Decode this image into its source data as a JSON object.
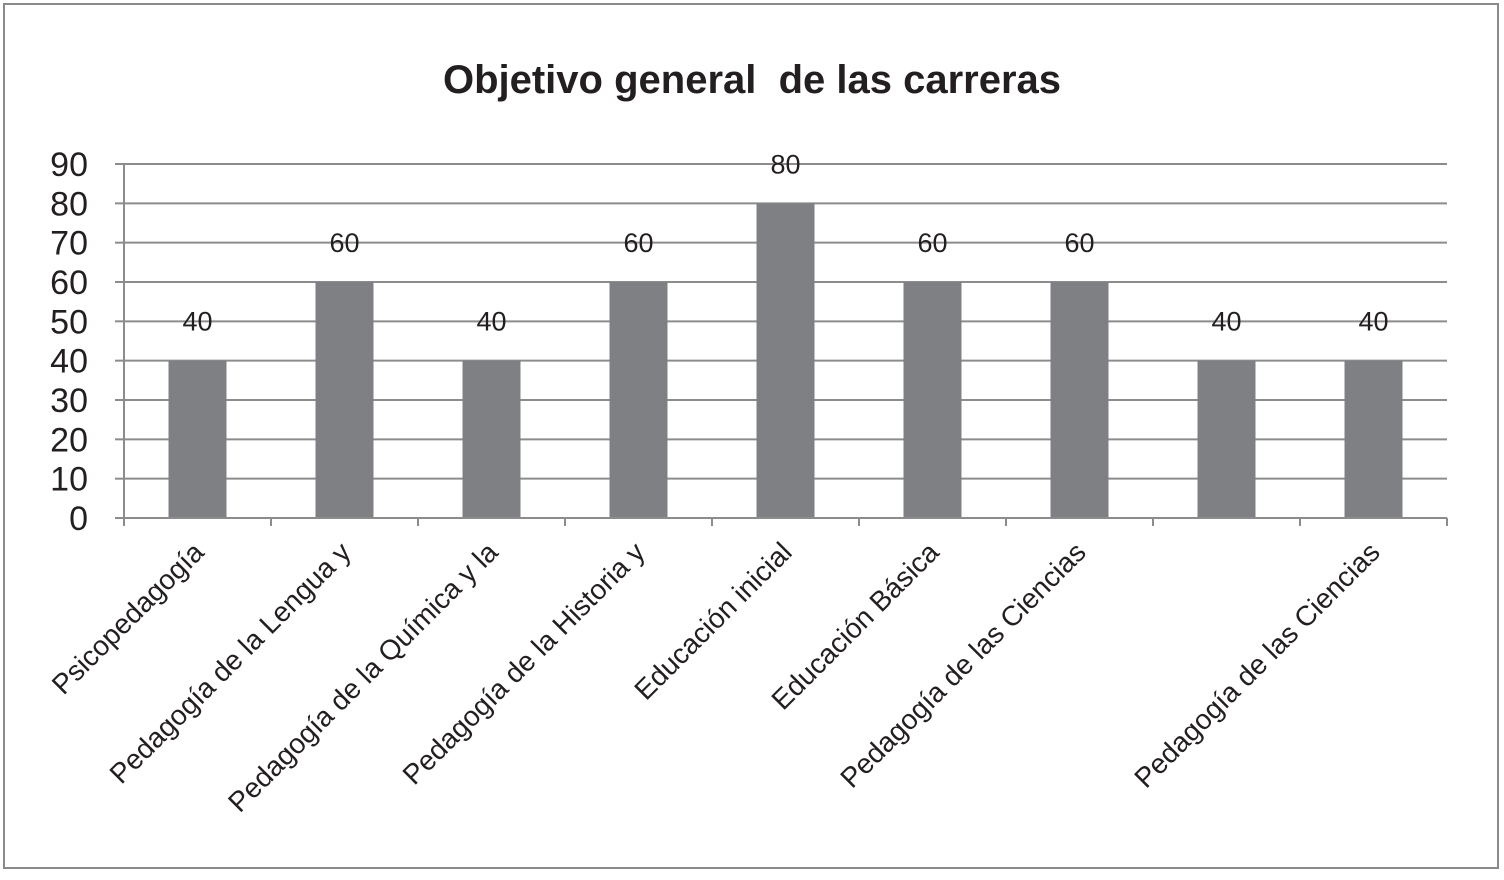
{
  "chart_data": {
    "type": "bar",
    "title": "Objetivo general  de las carreras",
    "xlabel": "",
    "ylabel": "",
    "ylim": [
      0,
      90
    ],
    "y_ticks": [
      0,
      10,
      20,
      30,
      40,
      50,
      60,
      70,
      80,
      90
    ],
    "grid": true,
    "legend": "none",
    "bar_color": "#7f8084",
    "grid_color": "#8c8c8c",
    "text_color": "#231f20",
    "categories": [
      "Psicopedagogía",
      "Pedagogía de la Lengua y",
      "Pedagogía de la Química y la",
      "Pedagogía de la Historia y",
      "Educación inicial",
      "Educación Básica",
      "Pedagogía de las Ciencias",
      "",
      "Pedagogía de las Ciencias"
    ],
    "values": [
      40,
      60,
      40,
      60,
      80,
      60,
      60,
      40,
      40
    ],
    "data_labels": [
      "40",
      "60",
      "40",
      "60",
      "80",
      "60",
      "60",
      "40",
      "40"
    ]
  }
}
